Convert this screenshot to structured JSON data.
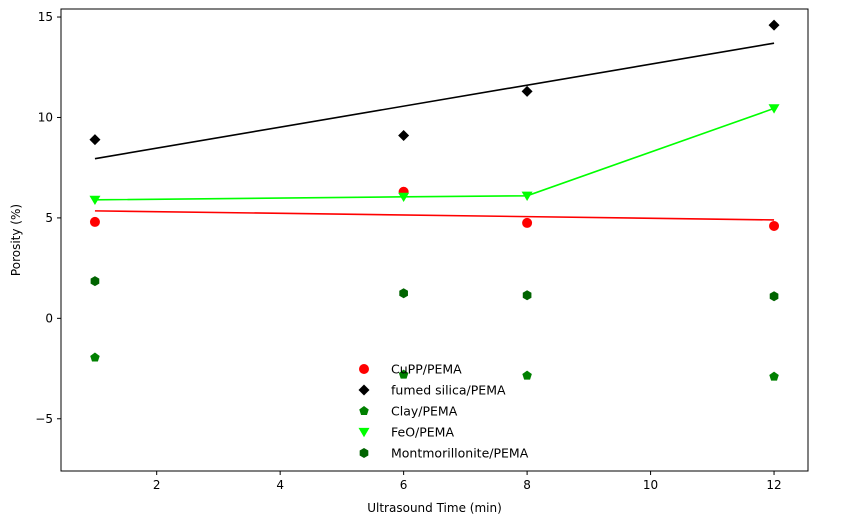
{
  "chart_data": {
    "type": "scatter",
    "title": "",
    "xlabel": "Ultrasound Time (min)",
    "ylabel": "Porosity (%)",
    "xlim": [
      0.45,
      12.55
    ],
    "ylim": [
      -7.6,
      15.4
    ],
    "xticks": [
      2,
      4,
      6,
      8,
      10,
      12
    ],
    "yticks": [
      -5,
      0,
      5,
      10,
      15
    ],
    "xtick_labels": [
      "2",
      "4",
      "6",
      "8",
      "10",
      "12"
    ],
    "ytick_labels": [
      "−5",
      "0",
      "5",
      "10",
      "15"
    ],
    "legend_position": "bottom-center",
    "series": [
      {
        "name": "CuPP/PEMA",
        "marker": "circle",
        "color": "#ff0000",
        "x": [
          1,
          6,
          8,
          12
        ],
        "y": [
          4.8,
          6.3,
          4.75,
          4.6
        ]
      },
      {
        "name": "fumed silica/PEMA",
        "marker": "diamond",
        "color": "#000000",
        "x": [
          1,
          6,
          8,
          12
        ],
        "y": [
          8.9,
          9.1,
          11.3,
          14.6
        ]
      },
      {
        "name": "Clay/PEMA",
        "marker": "pentagon",
        "color": "#008000",
        "x": [
          1,
          6,
          8,
          12
        ],
        "y": [
          -1.95,
          -2.8,
          -2.85,
          -2.9
        ]
      },
      {
        "name": "FeO/PEMA",
        "marker": "triangle-down",
        "color": "#00ff00",
        "x": [
          1,
          6,
          8,
          12
        ],
        "y": [
          5.9,
          6.05,
          6.1,
          10.45
        ]
      },
      {
        "name": "Montmorillonite/PEMA",
        "marker": "hexagon",
        "color": "#006400",
        "x": [
          1,
          6,
          8,
          12
        ],
        "y": [
          1.85,
          1.25,
          1.15,
          1.1
        ]
      }
    ],
    "lines": [
      {
        "name": "fumed silica trend",
        "color": "#000000",
        "x": [
          1,
          12
        ],
        "y": [
          7.95,
          13.7
        ]
      },
      {
        "name": "FeO/PEMA line",
        "color": "#00ff00",
        "x": [
          1,
          6,
          8,
          12
        ],
        "y": [
          5.9,
          6.05,
          6.1,
          10.45
        ]
      },
      {
        "name": "CuPP trend",
        "color": "#ff0000",
        "x": [
          1,
          12
        ],
        "y": [
          5.35,
          4.9
        ]
      }
    ]
  }
}
